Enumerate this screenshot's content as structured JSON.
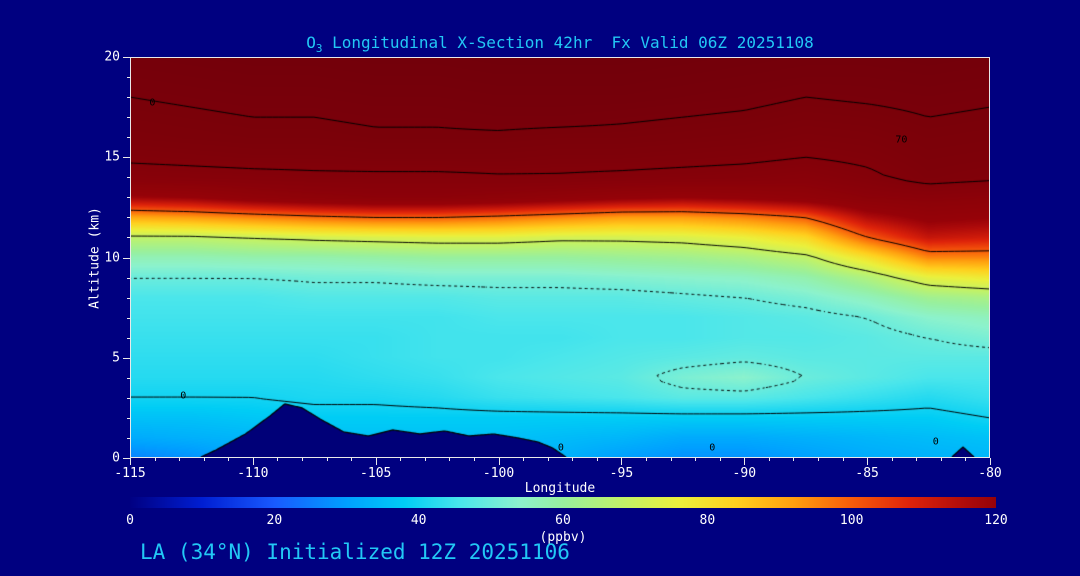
{
  "colors": {
    "background": "#000080",
    "title": "#22C8F5",
    "axis_text": "#FFFFFF",
    "contour_line": "#000000",
    "terrain": "#000078"
  },
  "title": {
    "prefix": "O",
    "sub": "3",
    "rest": " Longitudinal X-Section 42hr  Fx Valid 06Z 20251108"
  },
  "footer": {
    "text": "LA (34°N) Initialized 12Z 20251106"
  },
  "axes": {
    "x": {
      "label": "Longitude",
      "min": -115,
      "max": -80,
      "major": [
        -115,
        -110,
        -105,
        -100,
        -95,
        -90,
        -85,
        -80
      ],
      "minor_step": 1
    },
    "y": {
      "label": "Altitude (km)",
      "min": 0,
      "max": 20,
      "major": [
        0,
        5,
        10,
        15,
        20
      ],
      "minor_step": 1
    }
  },
  "colorbar": {
    "min": 0,
    "max": 120,
    "ticks": [
      0,
      20,
      40,
      60,
      80,
      100,
      120
    ],
    "label": "(ppbv)"
  },
  "contour_labels": [
    {
      "text": "0",
      "fx": 0.026,
      "fy": 0.115
    },
    {
      "text": "70",
      "fx": 0.897,
      "fy": 0.207
    },
    {
      "text": "0",
      "fx": 0.062,
      "fy": 0.845
    },
    {
      "text": "0",
      "fx": 0.501,
      "fy": 0.975
    },
    {
      "text": "0",
      "fx": 0.677,
      "fy": 0.975
    },
    {
      "text": "0",
      "fx": 0.937,
      "fy": 0.96
    }
  ],
  "chart_data": {
    "type": "heatmap",
    "title": "O3 Longitudinal X-Section 42hr Fx Valid 06Z 20251108",
    "xlabel": "Longitude",
    "ylabel": "Altitude (km)",
    "units": "ppbv",
    "xlim": [
      -115,
      -80
    ],
    "ylim": [
      0,
      20
    ],
    "colorbar_range": [
      0,
      120
    ],
    "x_lons": [
      -115,
      -112.5,
      -110,
      -107.5,
      -105,
      -102.5,
      -100,
      -97.5,
      -95,
      -92.5,
      -90,
      -87.5,
      -85,
      -82.5,
      -80
    ],
    "y_alts_km": [
      0,
      1,
      2,
      3,
      4,
      5,
      6,
      7,
      8,
      9,
      10,
      11,
      12,
      13,
      14,
      15,
      16,
      17,
      18,
      19,
      20
    ],
    "values_by_lon": [
      [
        26,
        32,
        36,
        40,
        42,
        43,
        44,
        45,
        46,
        50,
        57,
        68,
        90,
        118,
        135,
        142,
        146,
        148,
        150,
        152,
        154
      ],
      [
        28,
        33,
        36,
        40,
        42,
        43,
        44,
        45,
        46,
        50,
        57,
        68,
        92,
        120,
        136,
        143,
        147,
        149,
        151,
        153,
        155
      ],
      [
        32,
        34,
        37,
        40,
        42,
        43,
        44,
        45,
        46,
        50,
        58,
        70,
        95,
        125,
        137,
        144,
        148,
        150,
        152,
        154,
        156
      ],
      [
        34,
        36,
        38,
        41,
        42,
        43,
        44,
        45,
        47,
        51,
        58,
        72,
        98,
        128,
        138,
        144,
        148,
        150,
        152,
        154,
        156
      ],
      [
        34,
        36,
        38,
        41,
        43,
        44,
        44,
        45,
        47,
        51,
        59,
        73,
        100,
        130,
        138,
        145,
        149,
        151,
        153,
        155,
        157
      ],
      [
        35,
        36,
        38,
        42,
        44,
        45,
        45,
        45,
        47,
        52,
        60,
        74,
        100,
        130,
        138,
        145,
        149,
        151,
        153,
        155,
        157
      ],
      [
        34,
        36,
        38,
        44,
        46,
        45,
        45,
        46,
        48,
        52,
        60,
        74,
        98,
        128,
        139,
        145,
        149,
        152,
        154,
        156,
        158
      ],
      [
        33,
        35,
        38,
        45,
        47,
        46,
        45,
        46,
        48,
        52,
        60,
        72,
        95,
        125,
        139,
        144,
        148,
        152,
        154,
        156,
        158
      ],
      [
        30,
        34,
        38,
        46,
        48,
        47,
        46,
        46,
        48,
        53,
        61,
        72,
        92,
        122,
        138,
        144,
        148,
        151,
        154,
        156,
        158
      ],
      [
        28,
        32,
        38,
        48,
        52,
        48,
        46,
        46,
        49,
        54,
        62,
        73,
        92,
        120,
        137,
        143,
        147,
        150,
        153,
        155,
        157
      ],
      [
        28,
        32,
        38,
        48,
        54,
        49,
        47,
        47,
        50,
        55,
        64,
        76,
        95,
        122,
        136,
        142,
        146,
        149,
        152,
        154,
        156
      ],
      [
        30,
        33,
        38,
        46,
        50,
        48,
        47,
        48,
        52,
        58,
        68,
        82,
        100,
        125,
        134,
        140,
        144,
        147,
        150,
        153,
        155
      ],
      [
        32,
        34,
        38,
        44,
        48,
        48,
        48,
        50,
        56,
        65,
        80,
        100,
        115,
        130,
        138,
        142,
        145,
        148,
        151,
        153,
        155
      ],
      [
        33,
        35,
        38,
        42,
        46,
        48,
        50,
        54,
        62,
        75,
        95,
        112,
        122,
        132,
        144,
        146,
        148,
        150,
        152,
        154,
        156
      ],
      [
        34,
        36,
        40,
        44,
        46,
        48,
        52,
        56,
        64,
        78,
        95,
        110,
        120,
        130,
        142,
        145,
        147,
        149,
        151,
        153,
        155
      ]
    ],
    "terrain_km": [
      [
        -115,
        0
      ],
      [
        -112.2,
        0
      ],
      [
        -111.5,
        0.4
      ],
      [
        -110.3,
        1.2
      ],
      [
        -109.3,
        2.1
      ],
      [
        -108.7,
        2.7
      ],
      [
        -108.0,
        2.5
      ],
      [
        -107.2,
        1.9
      ],
      [
        -106.3,
        1.3
      ],
      [
        -105.3,
        1.1
      ],
      [
        -104.3,
        1.4
      ],
      [
        -103.2,
        1.2
      ],
      [
        -102.2,
        1.35
      ],
      [
        -101.2,
        1.1
      ],
      [
        -100.2,
        1.2
      ],
      [
        -99.2,
        1.0
      ],
      [
        -98.4,
        0.8
      ],
      [
        -97.8,
        0.5
      ],
      [
        -97.2,
        0
      ],
      [
        -81.6,
        0
      ],
      [
        -81.1,
        0.55
      ],
      [
        -80.6,
        0
      ],
      [
        -80,
        0
      ]
    ],
    "contour_levels": {
      "solid": [
        40,
        70,
        100,
        140,
        150
      ],
      "dotted": [
        50
      ]
    },
    "colormap": [
      [
        0,
        0,
        0,
        130
      ],
      [
        10,
        0,
        30,
        210
      ],
      [
        20,
        25,
        90,
        255
      ],
      [
        30,
        0,
        160,
        255
      ],
      [
        38,
        0,
        205,
        245
      ],
      [
        46,
        75,
        230,
        235
      ],
      [
        54,
        140,
        242,
        205
      ],
      [
        60,
        152,
        240,
        158
      ],
      [
        68,
        192,
        242,
        105
      ],
      [
        76,
        235,
        240,
        60
      ],
      [
        84,
        255,
        208,
        30
      ],
      [
        92,
        255,
        158,
        15
      ],
      [
        100,
        248,
        92,
        10
      ],
      [
        108,
        222,
        35,
        10
      ],
      [
        116,
        172,
        10,
        10
      ],
      [
        120,
        150,
        2,
        8
      ],
      [
        160,
        112,
        0,
        10
      ]
    ],
    "legend_position": "bottom",
    "grid": false
  }
}
